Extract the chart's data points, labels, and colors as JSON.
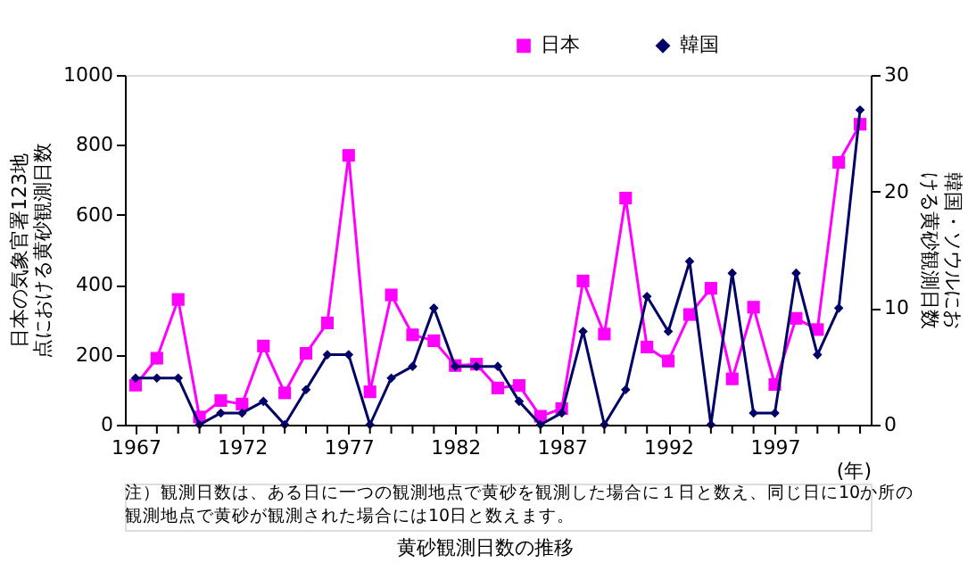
{
  "chart_data": {
    "type": "line",
    "title": "黄砂観測日数の推移",
    "xlabel": "(年)",
    "ylabel": "日本の気象官署123地点における黄砂観測日数",
    "y2label": "韓国・ソウルにおける黄砂観測日数",
    "annotations": [
      "注）観測日数は、ある日に一つの観測地点で黄砂を観測した場合に１日と数え、同じ日に10か所の観測地点で黄砂が観測された場合には10日と数えます。"
    ],
    "x": [
      1967,
      1968,
      1969,
      1970,
      1971,
      1972,
      1973,
      1974,
      1975,
      1976,
      1977,
      1978,
      1979,
      1980,
      1981,
      1982,
      1983,
      1984,
      1985,
      1986,
      1987,
      1988,
      1989,
      1990,
      1991,
      1992,
      1993,
      1994,
      1995,
      1996,
      1997,
      1998,
      1999,
      2000,
      2001
    ],
    "series": [
      {
        "name": "日本",
        "color": "#ff00ff",
        "marker": "square",
        "values": [
          113,
          190,
          358,
          22,
          69,
          59,
          225,
          91,
          204,
          291,
          770,
          94,
          371,
          257,
          240,
          169,
          173,
          105,
          112,
          24,
          46,
          411,
          259,
          648,
          222,
          182,
          315,
          390,
          131,
          336,
          115,
          304,
          272,
          750,
          859
        ]
      },
      {
        "name": "韓国",
        "color": "#000066",
        "marker": "diamond",
        "axis": "y2",
        "values": [
          4,
          4,
          4,
          0,
          1,
          1,
          2,
          0,
          3,
          6,
          6,
          0,
          4,
          5,
          10,
          5,
          5,
          5,
          2,
          0,
          1,
          8,
          0,
          3,
          11,
          8,
          14,
          0,
          13,
          1,
          1,
          13,
          6,
          10,
          27
        ]
      }
    ],
    "xlim": [
      1966.5,
      2001.5
    ],
    "xticks": [
      1967,
      {
        "value": 1968,
        "label": null
      },
      {
        "value": 1969,
        "label": null
      },
      {
        "value": 1970,
        "label": null
      },
      {
        "value": 1971,
        "label": null
      },
      1972,
      {
        "value": 1973,
        "label": null
      },
      {
        "value": 1974,
        "label": null
      },
      {
        "value": 1975,
        "label": null
      },
      {
        "value": 1976,
        "label": null
      },
      1977,
      {
        "value": 1978,
        "label": null
      },
      {
        "value": 1979,
        "label": null
      },
      {
        "value": 1980,
        "label": null
      },
      {
        "value": 1981,
        "label": null
      },
      1982,
      {
        "value": 1983,
        "label": null
      },
      {
        "value": 1984,
        "label": null
      },
      {
        "value": 1985,
        "label": null
      },
      {
        "value": 1986,
        "label": null
      },
      1987,
      {
        "value": 1988,
        "label": null
      },
      {
        "value": 1989,
        "label": null
      },
      {
        "value": 1990,
        "label": null
      },
      {
        "value": 1991,
        "label": null
      },
      1992,
      {
        "value": 1993,
        "label": null
      },
      {
        "value": 1994,
        "label": null
      },
      {
        "value": 1995,
        "label": null
      },
      {
        "value": 1996,
        "label": null
      },
      1997,
      {
        "value": 1998,
        "label": null
      },
      {
        "value": 1999,
        "label": null
      },
      {
        "value": 2000,
        "label": null
      },
      {
        "value": 2001,
        "label": null
      }
    ],
    "ylim": [
      0,
      1000
    ],
    "yticks": [
      0,
      200,
      400,
      600,
      800,
      1000
    ],
    "y2lim": [
      0,
      30
    ],
    "y2ticks": [
      0,
      10,
      20,
      30
    ],
    "grid": false,
    "legend": "top right",
    "line_style": "solid"
  }
}
